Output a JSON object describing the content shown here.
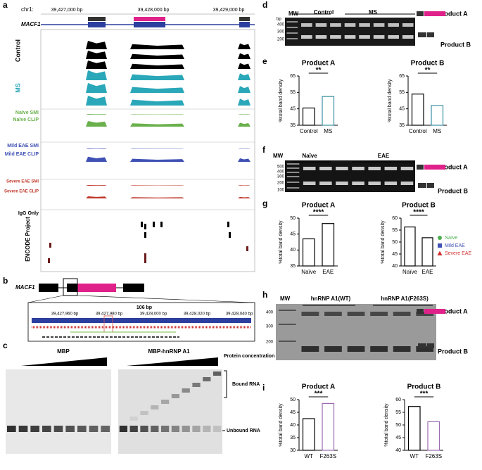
{
  "panel_a": {
    "letter": "a",
    "chr": "chr1:",
    "coords": [
      "39,427,000 bp",
      "39,428,000 bp",
      "39,429,000 bp"
    ],
    "gene": "MACF1",
    "tracks": [
      {
        "label": "Control",
        "color": "#000000"
      },
      {
        "label": "MS",
        "color": "#2aa7b8"
      },
      {
        "label": "Naïve SMI",
        "color": "#6ab04c"
      },
      {
        "label": "Naïve CLIP",
        "color": "#6ab04c"
      },
      {
        "label": "Mild EAE SMI",
        "color": "#3f51b5"
      },
      {
        "label": "Mild EAE CLIP",
        "color": "#3f51b5"
      },
      {
        "label": "Severe EAE SMI",
        "color": "#c0392b"
      },
      {
        "label": "Severe EAE CLIP",
        "color": "#c0392b"
      },
      {
        "label": "IgG Only",
        "color": "#000000"
      },
      {
        "label": "ENCODE Project",
        "color": "#000000"
      }
    ]
  },
  "panel_b": {
    "letter": "b",
    "gene": "MACF1",
    "length": "106 bp",
    "coords": [
      "39,427,960 bp",
      "39,427,980 bp",
      "39,428,000 bp",
      "39,428,020 bp",
      "39,428,040 bp"
    ]
  },
  "panel_c": {
    "letter": "c",
    "left": "MBP",
    "right": "MBP-hnRNP A1",
    "gradient": "Protein concentration",
    "bound": "Bound RNA",
    "unbound": "Unbound RNA"
  },
  "panel_d": {
    "letter": "d",
    "mw": "MW",
    "bp": "bp",
    "ladder": [
      "400",
      "300",
      "200"
    ],
    "groups": [
      "Control",
      "MS"
    ],
    "product_a": "Product A",
    "product_b": "Product B"
  },
  "panel_e": {
    "letter": "e",
    "charts": [
      {
        "title": "Product A",
        "ylabel": "%total band density",
        "categories": [
          "Control",
          "MS"
        ],
        "values": [
          45.5,
          52.5
        ],
        "colors": [
          "#000000",
          "#3a8fa3"
        ],
        "ylim": [
          35,
          65
        ],
        "yticks": [
          35,
          45,
          55,
          65
        ],
        "significance": "**"
      },
      {
        "title": "Product B",
        "ylabel": "%total band density",
        "categories": [
          "Control",
          "MS"
        ],
        "values": [
          54,
          47
        ],
        "colors": [
          "#000000",
          "#3a8fa3"
        ],
        "ylim": [
          35,
          65
        ],
        "yticks": [
          35,
          45,
          55,
          65
        ],
        "significance": "**"
      }
    ]
  },
  "panel_f": {
    "letter": "f",
    "mw": "MW",
    "ladder": [
      "500",
      "400",
      "300",
      "200",
      "100"
    ],
    "groups": [
      "Naïve",
      "EAE"
    ],
    "product_a": "Product A",
    "product_b": "Product B"
  },
  "panel_g": {
    "letter": "g",
    "charts": [
      {
        "title": "Product A",
        "ylabel": "%total band density",
        "categories": [
          "Naïve",
          "EAE"
        ],
        "values": [
          43.5,
          48.3
        ],
        "colors": [
          "#000000",
          "#000000"
        ],
        "ylim": [
          35,
          50
        ],
        "yticks": [
          35,
          40,
          45,
          50
        ],
        "significance": "****"
      },
      {
        "title": "Product B",
        "ylabel": "%total band density",
        "categories": [
          "Naïve",
          "EAE"
        ],
        "values": [
          56.3,
          51.8
        ],
        "colors": [
          "#000000",
          "#000000"
        ],
        "ylim": [
          40,
          60
        ],
        "yticks": [
          40,
          45,
          50,
          55,
          60
        ],
        "significance": "****"
      }
    ],
    "legend": [
      {
        "name": "Naïve",
        "color": "#4caf50"
      },
      {
        "name": "Mild EAE",
        "color": "#3f51b5"
      },
      {
        "name": "Severe EAE",
        "color": "#d32f2f"
      }
    ]
  },
  "panel_h": {
    "letter": "h",
    "mw": "MW",
    "ladder": [
      "400",
      "300",
      "200"
    ],
    "groups": [
      "hnRNP A1(WT)",
      "hnRNP A1(F263S)"
    ],
    "product_a": "Product A",
    "product_b": "Product B"
  },
  "panel_i": {
    "letter": "i",
    "charts": [
      {
        "title": "Product A",
        "ylabel": "%total band density",
        "categories": [
          "WT",
          "F263S"
        ],
        "values": [
          42.5,
          48.5
        ],
        "colors": [
          "#000000",
          "#9b6bb0"
        ],
        "ylim": [
          30,
          50
        ],
        "yticks": [
          30,
          35,
          40,
          45,
          50
        ],
        "significance": "***"
      },
      {
        "title": "Product B",
        "ylabel": "%total band density",
        "categories": [
          "WT",
          "F263S"
        ],
        "values": [
          57.3,
          51.3
        ],
        "colors": [
          "#000000",
          "#9b6bb0"
        ],
        "ylim": [
          40,
          60
        ],
        "yticks": [
          40,
          45,
          50,
          55,
          60
        ],
        "significance": "***"
      }
    ]
  }
}
